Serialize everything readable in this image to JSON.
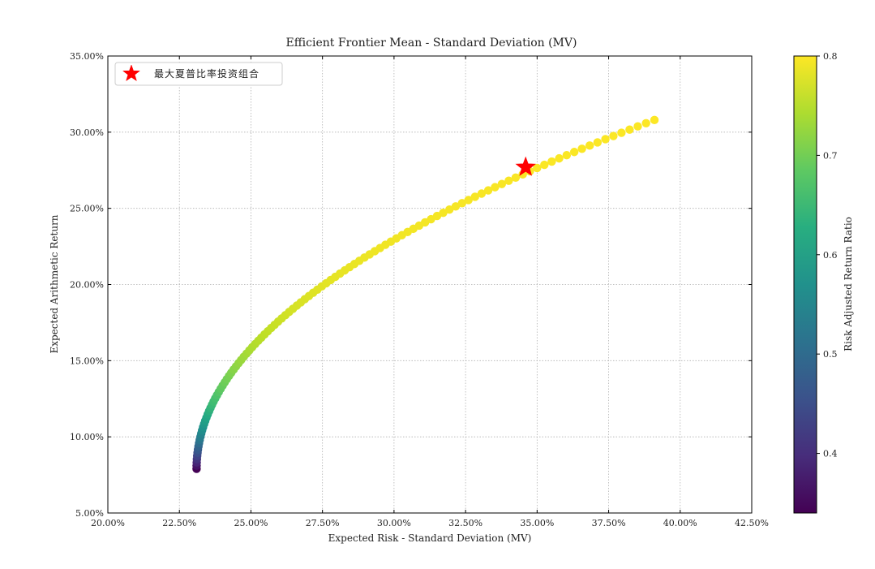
{
  "chart_data": {
    "type": "scatter",
    "title": "Efficient Frontier Mean - Standard Deviation (MV)",
    "xlabel": "Expected Risk - Standard Deviation (MV)",
    "ylabel": "Expected Arithmetic Return",
    "xlim": [
      20.0,
      42.5
    ],
    "ylim": [
      5.0,
      35.0
    ],
    "x_ticks": [
      20.0,
      22.5,
      25.0,
      27.5,
      30.0,
      32.5,
      35.0,
      37.5,
      40.0,
      42.5
    ],
    "x_tick_labels": [
      "20.00%",
      "22.50%",
      "25.00%",
      "27.50%",
      "30.00%",
      "32.50%",
      "35.00%",
      "37.50%",
      "40.00%",
      "42.50%"
    ],
    "y_ticks": [
      5,
      10,
      15,
      20,
      25,
      30,
      35
    ],
    "y_tick_labels": [
      "5.00%",
      "10.00%",
      "15.00%",
      "20.00%",
      "25.00%",
      "30.00%",
      "35.00%"
    ],
    "grid": true,
    "legend": {
      "placement": "top-left",
      "entries": [
        {
          "label": "最大夏普比率投资组合",
          "marker": "star",
          "color": "#ff0000"
        }
      ]
    },
    "colorbar": {
      "label": "Risk Adjusted Return Ratio",
      "range": [
        0.34,
        0.8
      ],
      "ticks": [
        0.4,
        0.5,
        0.6,
        0.7,
        0.8
      ],
      "tick_labels": [
        "0.4",
        "0.5",
        "0.6",
        "0.7",
        "0.8"
      ],
      "colormap": "viridis"
    },
    "frontier": {
      "risk_start": 23.1,
      "risk_end": 39.1,
      "return_min": 7.9,
      "return_max": 30.8,
      "points": 110,
      "ratio_min": 0.34,
      "ratio_max": 0.8
    },
    "max_sharpe": {
      "risk": 34.6,
      "return": 27.7
    }
  }
}
